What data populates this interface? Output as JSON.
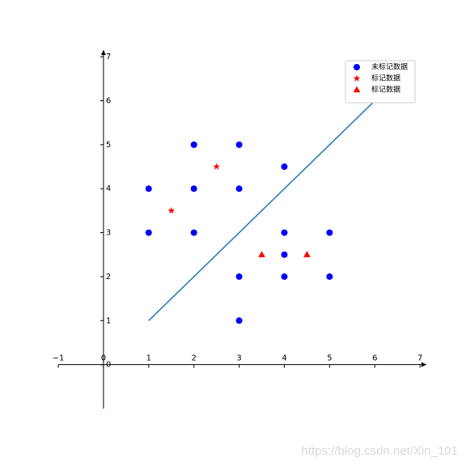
{
  "chart_data": {
    "type": "scatter",
    "xlim": [
      -1,
      7.14
    ],
    "ylim": [
      -1,
      7.15
    ],
    "xticks": [
      {
        "value": -1,
        "label": "−1"
      },
      0,
      1,
      2,
      3,
      4,
      5,
      6,
      7
    ],
    "yticks": [
      0,
      1,
      2,
      3,
      4,
      5,
      6,
      7
    ],
    "series": [
      {
        "name": "未标记数据",
        "color": "#0000ff",
        "marker": "circle",
        "x": [
          1,
          1,
          2,
          2,
          2,
          3,
          3,
          3,
          3,
          4,
          4,
          4,
          4,
          5,
          5
        ],
        "values": [
          4,
          3,
          5,
          4,
          3,
          5,
          4,
          2,
          1,
          4.5,
          3,
          2.5,
          2,
          3,
          2
        ]
      },
      {
        "name": "标记数据",
        "color": "#ff0000",
        "marker": "star",
        "x": [
          1.5,
          2.5
        ],
        "values": [
          3.5,
          4.5
        ]
      },
      {
        "name": "标记数据",
        "color": "#ff0000",
        "marker": "triangle",
        "x": [
          3.5,
          4.5
        ],
        "values": [
          2.5,
          2.5
        ]
      },
      {
        "color": "#1f77b4",
        "marker": "line",
        "x": [
          1,
          6
        ],
        "values": [
          1,
          6
        ]
      }
    ],
    "legend": "upper right"
  },
  "watermark": "https://blog.csdn.net/Xin_101"
}
